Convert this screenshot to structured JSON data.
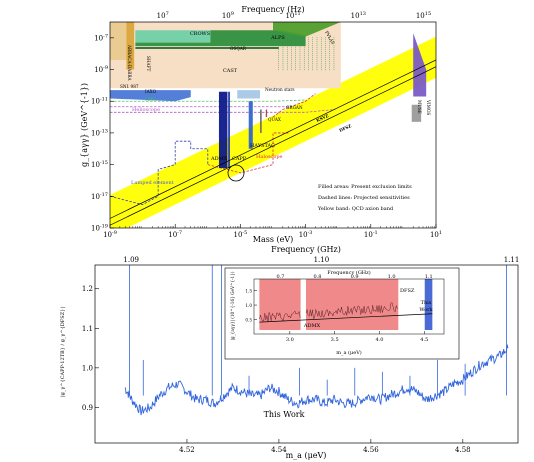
{
  "chart_data": [
    {
      "type": "area",
      "panel": "top",
      "top_axis": {
        "label": "Frequency (Hz)",
        "ticks": [
          "10^7",
          "10^9",
          "10^11",
          "10^13",
          "10^15"
        ]
      },
      "xlabel": "Mass (eV)",
      "ylabel": "g_{aγγ} (GeV^{-1})",
      "x_scale": "log",
      "y_scale": "log",
      "xlim": [
        1e-09,
        10
      ],
      "ylim": [
        1e-19,
        1e-06
      ],
      "x_ticks": [
        "10^-9",
        "10^-7",
        "10^-5",
        "10^-3",
        "10^-1",
        "10^1"
      ],
      "y_ticks": [
        "10^-7",
        "10^-9",
        "10^-11",
        "10^-13",
        "10^-15",
        "10^-17",
        "10^-19"
      ],
      "regions": [
        {
          "name": "ABRACADABRA",
          "label": "ABRACA-DABRA",
          "color": "#e9c98f"
        },
        {
          "name": "SHAFT",
          "label": "SHAFT",
          "color": "#d9a43a"
        },
        {
          "name": "CROWS",
          "label": "CROWS",
          "color": "#6fcfa7"
        },
        {
          "name": "ALPS",
          "label": "ALPS",
          "color": "#2f8f3e"
        },
        {
          "name": "PVLAS",
          "label": "PVLAS",
          "color": "#4f9e2e"
        },
        {
          "name": "OSQAR",
          "label": "OSQAR",
          "color": "#0f5f2a"
        },
        {
          "name": "CAST",
          "label": "CAST",
          "color": "#f6dfc4"
        },
        {
          "name": "SN1987A",
          "label": "SN1 987",
          "color": "#4a78d6"
        },
        {
          "name": "Helioscope",
          "label": "Helioscope",
          "color": "#b05cc8"
        },
        {
          "name": "ADMX",
          "label": "ADMX",
          "color": "#0d1a8a"
        },
        {
          "name": "CAPP",
          "label": "CAPP",
          "color": "#2a3fb0"
        },
        {
          "name": "HAYSTAC",
          "label": "HAYSTAC",
          "color": "#3366cc"
        },
        {
          "name": "ORGAN",
          "label": "ORGAN",
          "color": "#b23b3b"
        },
        {
          "name": "QUAX",
          "label": "QUAX",
          "color": "#6a6a6a"
        },
        {
          "name": "NeutronStars",
          "label": "Neutron stars",
          "color": "#a7c7e7"
        },
        {
          "name": "MUSE",
          "label": "MUSE",
          "color": "#9a9a9a"
        },
        {
          "name": "VIMOS",
          "label": "VIMOS",
          "color": "#7a5bc6"
        }
      ],
      "projected": [
        {
          "name": "IAXO",
          "label": "IAXO",
          "color": "#b05cc8"
        },
        {
          "name": "LBW",
          "label": "LBW",
          "color": "#4fbf6a"
        },
        {
          "name": "Lumped element",
          "label": "Lumped element",
          "color": "#2a3fb0"
        },
        {
          "name": "Haloscope",
          "label": "Haloscope",
          "color": "#d9303a"
        },
        {
          "name": "Helioscope",
          "label": "Helioscope",
          "color": "#b05cc8"
        }
      ],
      "model_lines": [
        {
          "name": "KSVZ",
          "slope_decades": 1,
          "at_mass_1e-9": 4e-19
        },
        {
          "name": "DFSZ",
          "slope_decades": 1,
          "at_mass_1e-9": 1.5e-19
        }
      ],
      "band": {
        "name": "QCD axion band",
        "color": "#ffff00"
      },
      "legend_notes": [
        "Filled areas: Present exclusion limits",
        "Dashed lines: Projected sensitivities",
        "Yellow band: QCD axion band"
      ],
      "label_texts": {
        "admx": "ADMX",
        "capp": "CAPP",
        "haystac": "HAYSTAC",
        "haloscope_red": "Haloscope",
        "helioscope": "Helioscope",
        "lumped": "Lumped element",
        "lbw": "LBW",
        "iaxo": "IAXO",
        "organ": "ORGAN",
        "quax": "QUAX",
        "neutron": "Neutron stars",
        "sn1987": "SN1 987",
        "muse": "MUSE",
        "vimos": "VIMOS",
        "ksvz": "KSVZ",
        "dfsz": "DFSZ",
        "cast": "CAST",
        "osqar": "OSQAR",
        "alps": "ALPS",
        "pvlas": "PVLAS",
        "crows": "CROWS",
        "shaft": "SHAFT",
        "abra": "ABRACA-DABRA"
      }
    },
    {
      "type": "line",
      "panel": "bottom",
      "top_axis": {
        "label": "Frequency (GHz)",
        "ticks": [
          1.09,
          1.1,
          1.11
        ]
      },
      "xlabel": "m_a (μeV)",
      "ylabel": "|g_γ^{CAPP-12TB} / g_γ^{DFSZ}|",
      "xlim": [
        4.5,
        4.592
      ],
      "ylim": [
        0.81,
        1.26
      ],
      "x_ticks": [
        4.52,
        4.54,
        4.56,
        4.58
      ],
      "y_ticks": [
        0.9,
        1.0,
        1.1,
        1.2
      ],
      "series": [
        {
          "name": "This Work",
          "color": "#3366dd",
          "x": [
            4.5065,
            4.508,
            4.51,
            4.512,
            4.514,
            4.516,
            4.518,
            4.52,
            4.522,
            4.524,
            4.526,
            4.528,
            4.53,
            4.532,
            4.534,
            4.536,
            4.538,
            4.54,
            4.542,
            4.544,
            4.546,
            4.548,
            4.55,
            4.552,
            4.554,
            4.556,
            4.558,
            4.56,
            4.562,
            4.564,
            4.566,
            4.568,
            4.57,
            4.572,
            4.574,
            4.576,
            4.578,
            4.58,
            4.582,
            4.584,
            4.586,
            4.588,
            4.5898
          ],
          "y": [
            0.95,
            0.92,
            0.89,
            0.9,
            0.93,
            0.95,
            0.96,
            0.94,
            0.92,
            0.92,
            0.91,
            0.93,
            0.95,
            0.94,
            0.93,
            0.93,
            0.95,
            0.94,
            0.92,
            0.91,
            0.92,
            0.92,
            0.91,
            0.92,
            0.91,
            0.91,
            0.92,
            0.93,
            0.92,
            0.93,
            0.94,
            0.95,
            0.94,
            0.92,
            0.93,
            0.94,
            0.96,
            0.97,
            0.99,
            1.01,
            1.02,
            1.03,
            1.05
          ]
        }
      ],
      "spikes": [
        {
          "x": 4.5075,
          "y": 1.26
        },
        {
          "x": 4.5255,
          "y": 1.26
        },
        {
          "x": 4.5275,
          "y": 1.26
        },
        {
          "x": 4.5895,
          "y": 1.26
        },
        {
          "x": 4.5105,
          "y": 1.02
        },
        {
          "x": 4.5335,
          "y": 0.98
        },
        {
          "x": 4.5445,
          "y": 1.0
        },
        {
          "x": 4.5505,
          "y": 0.97
        },
        {
          "x": 4.5565,
          "y": 1.0
        },
        {
          "x": 4.5625,
          "y": 0.99
        },
        {
          "x": 4.5685,
          "y": 0.98
        },
        {
          "x": 4.5745,
          "y": 1.02
        },
        {
          "x": 4.5805,
          "y": 1.01
        }
      ],
      "annotation": "This Work",
      "inset": {
        "top_axis": {
          "label": "Frequency (GHz)",
          "ticks": [
            0.7,
            0.8,
            0.9,
            1.0,
            1.1
          ]
        },
        "xlabel": "m_a (μeV)",
        "ylabel": "|g_{aγγ}| (10^{-16} GeV^{-1})",
        "xlim": [
          2.6,
          4.72
        ],
        "ylim": [
          0.0,
          1.9
        ],
        "x_ticks": [
          3.0,
          3.5,
          4.0,
          4.5
        ],
        "y_ticks": [
          0.5,
          1.0,
          1.5
        ],
        "regions": [
          {
            "name": "ADMX",
            "label": "ADMX",
            "color": "#f08a8a",
            "x_ranges": [
              [
                2.66,
                3.12
              ],
              [
                3.18,
                4.21
              ]
            ]
          },
          {
            "name": "This Work",
            "label": "This Work",
            "color": "#4a6bd6",
            "x_ranges": [
              [
                4.505,
                4.59
              ]
            ]
          }
        ],
        "lines": [
          {
            "name": "DFSZ",
            "label": "DFSZ",
            "x": [
              2.66,
              4.59
            ],
            "y": [
              0.41,
              0.7
            ]
          }
        ]
      }
    }
  ]
}
